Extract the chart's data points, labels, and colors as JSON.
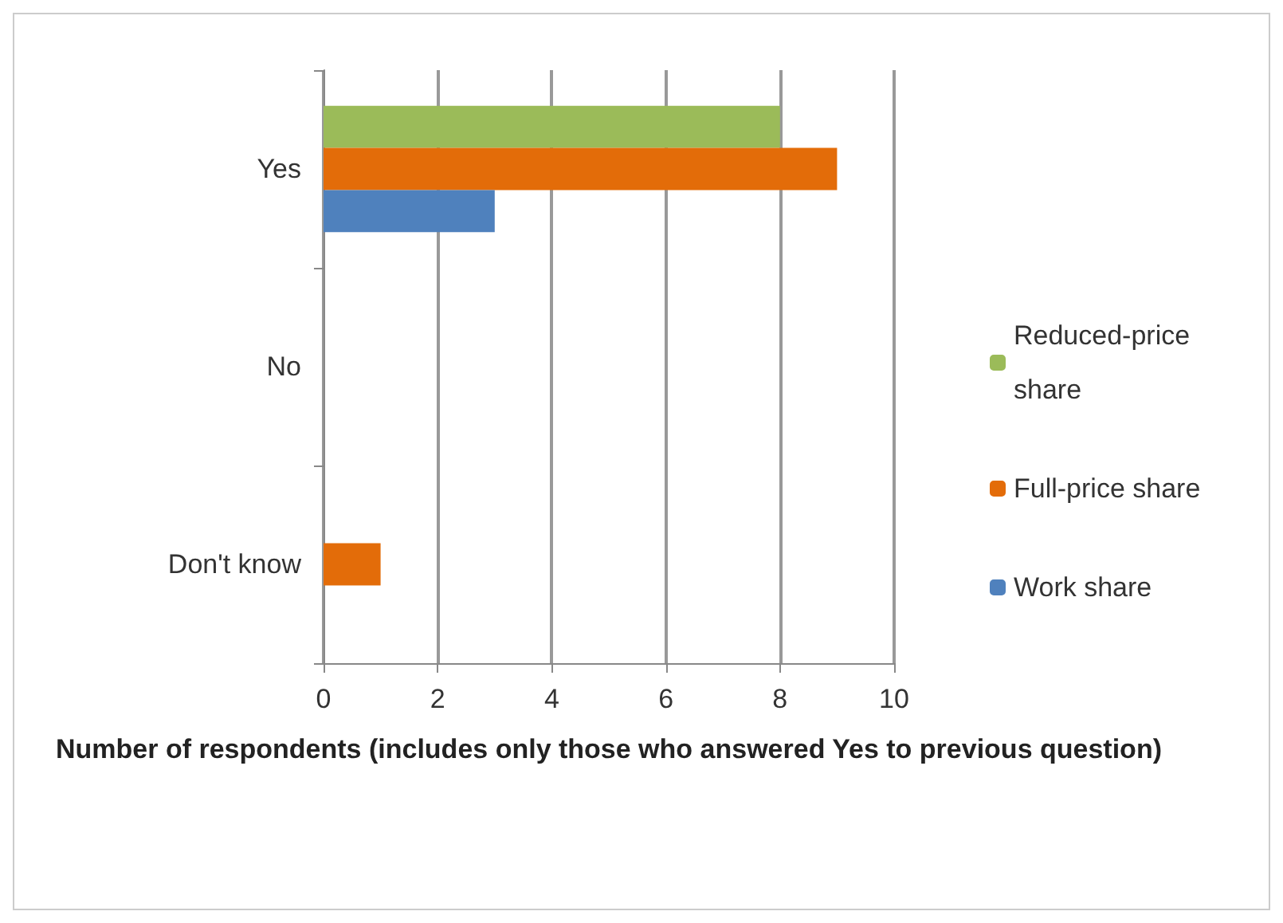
{
  "chart_data": {
    "type": "bar",
    "orientation": "horizontal",
    "categories": [
      "Yes",
      "No",
      "Don't know"
    ],
    "series": [
      {
        "name": "Reduced-price share",
        "color": "#9bbb59",
        "values": [
          8,
          0,
          0
        ]
      },
      {
        "name": "Full-price share",
        "color": "#e36c09",
        "values": [
          9,
          0,
          1
        ]
      },
      {
        "name": "Work share",
        "color": "#4f81bd",
        "values": [
          3,
          0,
          0
        ]
      }
    ],
    "xlabel": "Number of respondents (includes only those who answered Yes to previous question)",
    "xlim": [
      0,
      10
    ],
    "xticks": [
      0,
      2,
      4,
      6,
      8,
      10
    ],
    "grid": "x",
    "legend": "right"
  }
}
